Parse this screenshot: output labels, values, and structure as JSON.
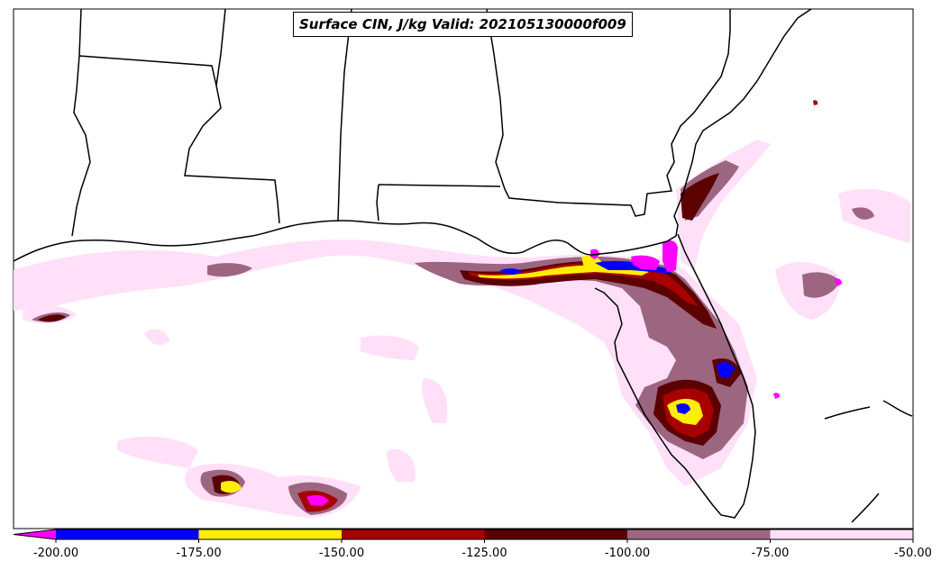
{
  "title": "Surface CIN, J/kg Valid: 202105130000f009",
  "colorbar": {
    "ticks": [
      "-200.00",
      "-175.00",
      "-150.00",
      "-125.00",
      "-100.00",
      "-75.00",
      "-50.00"
    ],
    "bins": [
      {
        "from": -225,
        "to": -200,
        "color": "#ff00ff"
      },
      {
        "from": -200,
        "to": -175,
        "color": "#0000ff"
      },
      {
        "from": -175,
        "to": -150,
        "color": "#ffee00"
      },
      {
        "from": -150,
        "to": -125,
        "color": "#a80000"
      },
      {
        "from": -125,
        "to": -100,
        "color": "#5c0000"
      },
      {
        "from": -100,
        "to": -75,
        "color": "#9c6680"
      },
      {
        "from": -75,
        "to": -50,
        "color": "#ffe0f8"
      }
    ]
  }
}
